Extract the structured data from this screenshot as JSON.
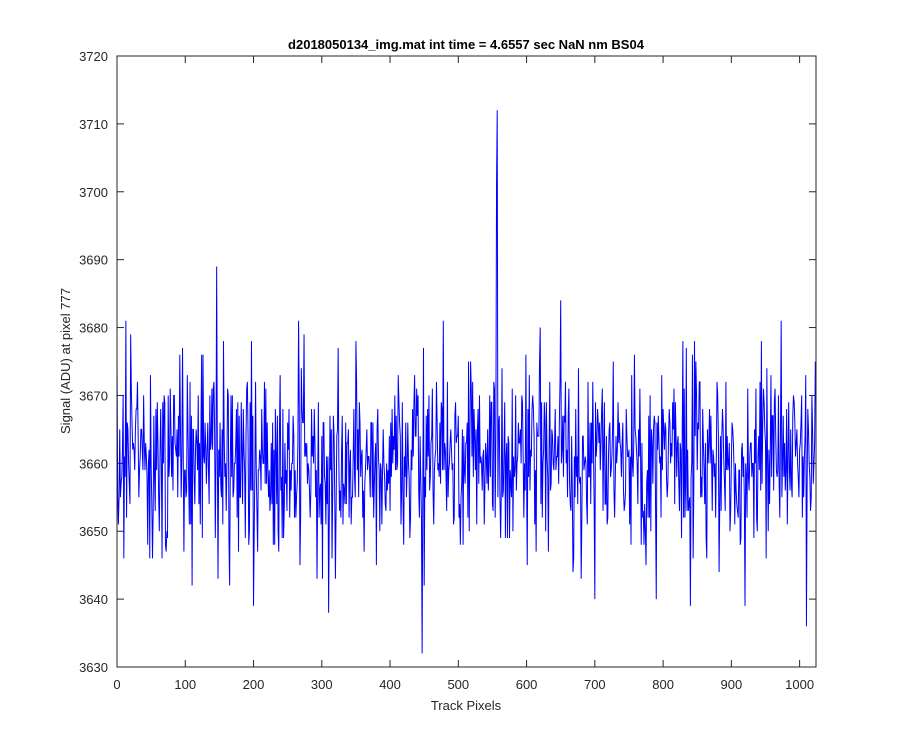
{
  "chart_data": {
    "type": "line",
    "title": "d2018050134_img.mat int time = 4.6557 sec  NaN nm BS04",
    "xlabel": "Track Pixels",
    "ylabel": "Signal (ADU) at pixel 777",
    "xlim": [
      0,
      1024
    ],
    "ylim": [
      3630,
      3720
    ],
    "xticks": [
      0,
      100,
      200,
      300,
      400,
      500,
      600,
      700,
      800,
      900,
      1000
    ],
    "yticks": [
      3630,
      3640,
      3650,
      3660,
      3670,
      3680,
      3690,
      3700,
      3710,
      3720
    ],
    "grid": false,
    "line_color": "#0000ff",
    "axis_color": "#262626",
    "series": [
      {
        "description": "Noisy signal fluctuating around ~3660 ADU for pixels 0-1023; notable extremes listed below, remaining points approximated by seeded noise (std ~7 ADU)",
        "mean": 3660.5,
        "std": 7,
        "noise_seed": 20180501,
        "n_points": 1024,
        "extremes": [
          {
            "x": 0,
            "y": 3676
          },
          {
            "x": 20,
            "y": 3679
          },
          {
            "x": 66,
            "y": 3646
          },
          {
            "x": 110,
            "y": 3642
          },
          {
            "x": 146,
            "y": 3689
          },
          {
            "x": 148,
            "y": 3643
          },
          {
            "x": 165,
            "y": 3642
          },
          {
            "x": 200,
            "y": 3639
          },
          {
            "x": 310,
            "y": 3638
          },
          {
            "x": 320,
            "y": 3643
          },
          {
            "x": 380,
            "y": 3645
          },
          {
            "x": 447,
            "y": 3632
          },
          {
            "x": 450,
            "y": 3642
          },
          {
            "x": 556,
            "y": 3701
          },
          {
            "x": 557,
            "y": 3712
          },
          {
            "x": 650,
            "y": 3684
          },
          {
            "x": 700,
            "y": 3640
          },
          {
            "x": 790,
            "y": 3640
          },
          {
            "x": 840,
            "y": 3639
          },
          {
            "x": 920,
            "y": 3639
          },
          {
            "x": 1010,
            "y": 3636
          },
          {
            "x": 1023,
            "y": 3675
          }
        ]
      }
    ]
  }
}
